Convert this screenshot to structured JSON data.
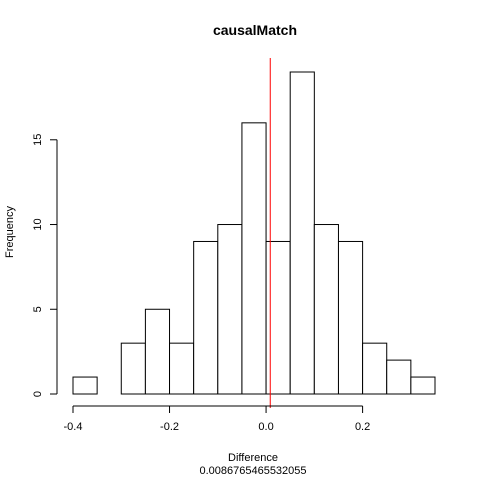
{
  "chart_data": {
    "type": "bar",
    "title": "causalMatch",
    "xlabel": "Difference",
    "subtitle": "0.0086765465532055",
    "ylabel": "Frequency",
    "bin_edges": [
      -0.4,
      -0.35,
      -0.3,
      -0.25,
      -0.2,
      -0.15,
      -0.1,
      -0.05,
      0.0,
      0.05,
      0.1,
      0.15,
      0.2,
      0.25,
      0.3,
      0.35
    ],
    "counts": [
      1,
      0,
      3,
      5,
      3,
      9,
      10,
      16,
      9,
      19,
      10,
      9,
      3,
      2,
      1
    ],
    "xlim": [
      -0.4,
      0.35
    ],
    "ylim": [
      0,
      19
    ],
    "x_ticks": [
      -0.4,
      -0.2,
      0.0,
      0.2
    ],
    "x_tick_labels": [
      "-0.4",
      "-0.2",
      "0.0",
      "0.2"
    ],
    "y_ticks": [
      0,
      5,
      10,
      15
    ],
    "y_tick_labels": [
      "0",
      "5",
      "10",
      "15"
    ],
    "reference_line": {
      "x": 0.0086765465532055,
      "color": "#ff0000"
    },
    "bar_fill": "#ffffff",
    "bar_stroke": "#000000",
    "grid": false,
    "legend": "none"
  }
}
